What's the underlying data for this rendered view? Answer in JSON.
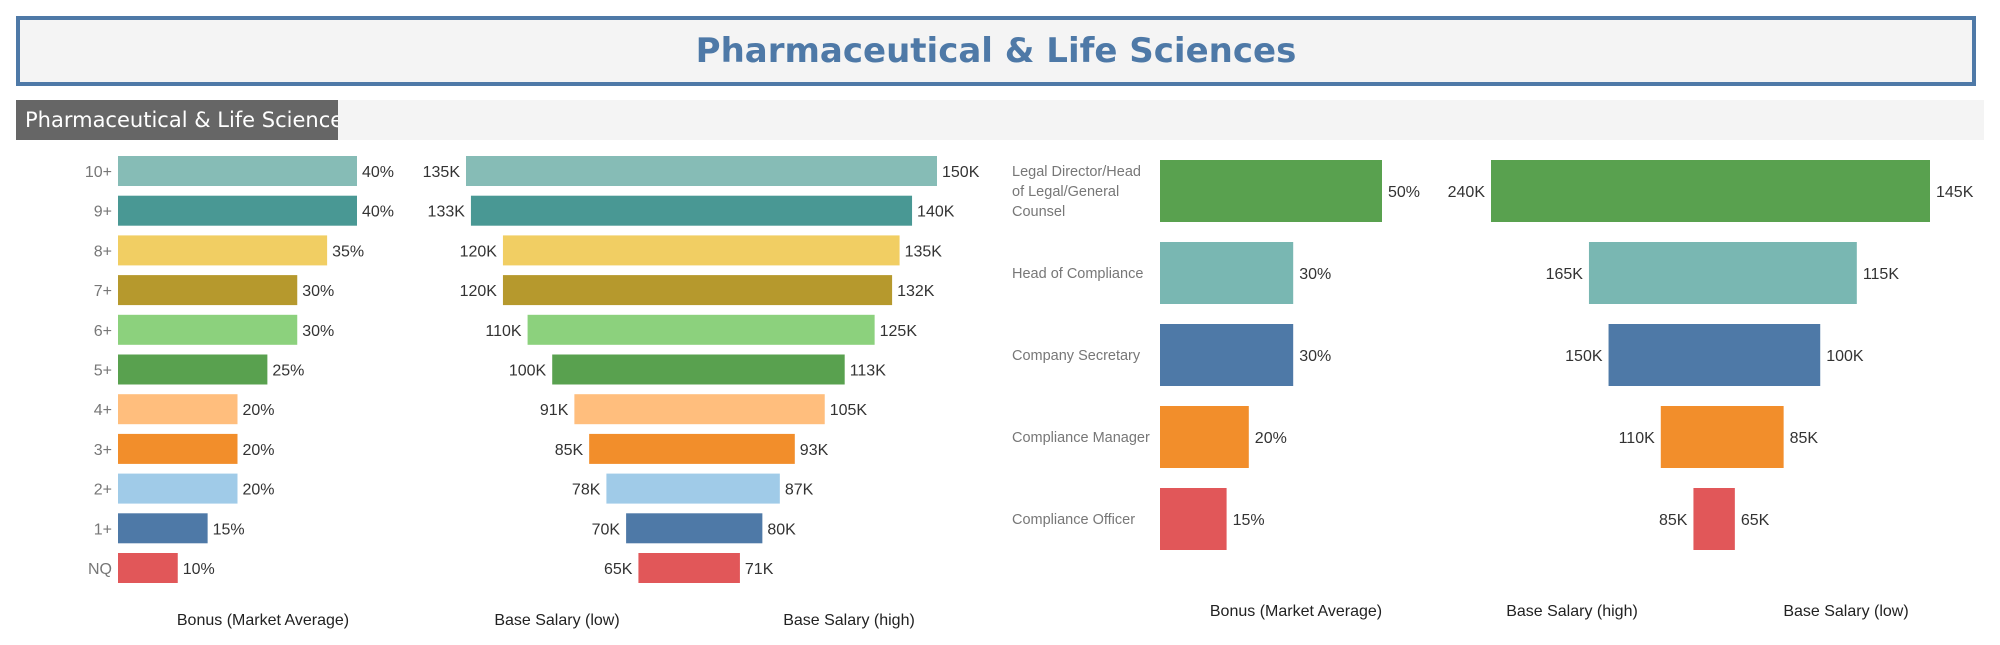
{
  "page_title": "Pharmaceutical & Life Sciences",
  "section_label": "Pharmaceutical & Life Sciences",
  "chart_data": [
    {
      "type": "bar",
      "orientation": "horizontal",
      "xlabel": "Bonus (Market Average)",
      "categories": [
        "10+",
        "9+",
        "8+",
        "7+",
        "6+",
        "5+",
        "4+",
        "3+",
        "2+",
        "1+",
        "NQ"
      ],
      "values": [
        40,
        40,
        35,
        30,
        30,
        25,
        20,
        20,
        20,
        15,
        10
      ],
      "labels": [
        "40%",
        "40%",
        "35%",
        "30%",
        "30%",
        "25%",
        "20%",
        "20%",
        "20%",
        "15%",
        "10%"
      ],
      "colors": [
        "#86bcb6",
        "#499894",
        "#f1ce63",
        "#b6992d",
        "#8cd17d",
        "#59a14f",
        "#ffbe7d",
        "#f28e2b",
        "#a0cbe8",
        "#4e79a7",
        "#e15759"
      ],
      "xlim": [
        0,
        40
      ]
    },
    {
      "type": "bar",
      "orientation": "horizontal",
      "subtype": "butterfly",
      "categories": [
        "10+",
        "9+",
        "8+",
        "7+",
        "6+",
        "5+",
        "4+",
        "3+",
        "2+",
        "1+",
        "NQ"
      ],
      "series": [
        {
          "name": "Base Salary (low)",
          "values": [
            135,
            133,
            120,
            120,
            110,
            100,
            91,
            85,
            78,
            70,
            65
          ],
          "labels": [
            "135K",
            "133K",
            "120K",
            "120K",
            "110K",
            "100K",
            "91K",
            "85K",
            "78K",
            "70K",
            "65K"
          ]
        },
        {
          "name": "Base Salary (high)",
          "values": [
            150,
            140,
            135,
            132,
            125,
            113,
            105,
            93,
            87,
            80,
            71
          ],
          "labels": [
            "150K",
            "140K",
            "135K",
            "132K",
            "125K",
            "113K",
            "105K",
            "93K",
            "87K",
            "80K",
            "71K"
          ]
        }
      ],
      "colors": [
        "#86bcb6",
        "#499894",
        "#f1ce63",
        "#b6992d",
        "#8cd17d",
        "#59a14f",
        "#ffbe7d",
        "#f28e2b",
        "#a0cbe8",
        "#4e79a7",
        "#e15759"
      ],
      "unit": "K"
    },
    {
      "type": "bar",
      "orientation": "horizontal",
      "xlabel": "Bonus (Market Average)",
      "categories": [
        [
          "Legal Director/Head",
          "of Legal/General",
          "Counsel"
        ],
        [
          "Head of Compliance"
        ],
        [
          "Company Secretary"
        ],
        [
          "Compliance Manager"
        ],
        [
          "Compliance Officer"
        ]
      ],
      "values": [
        50,
        30,
        30,
        20,
        15
      ],
      "labels": [
        "50%",
        "30%",
        "30%",
        "20%",
        "15%"
      ],
      "colors": [
        "#59a14f",
        "#79b7b2",
        "#4e79a7",
        "#f28e2b",
        "#e15759"
      ],
      "xlim": [
        0,
        50
      ]
    },
    {
      "type": "bar",
      "orientation": "horizontal",
      "subtype": "butterfly",
      "categories": [
        "Legal Director/Head of Legal/General Counsel",
        "Head of Compliance",
        "Company Secretary",
        "Compliance Manager",
        "Compliance Officer"
      ],
      "series": [
        {
          "name": "Base Salary (high)",
          "values": [
            240,
            165,
            150,
            110,
            85
          ],
          "labels": [
            "240K",
            "165K",
            "150K",
            "110K",
            "85K"
          ]
        },
        {
          "name": "Base Salary (low)",
          "values": [
            145,
            115,
            100,
            85,
            65
          ],
          "labels": [
            "145K",
            "115K",
            "100K",
            "85K",
            "65K"
          ]
        }
      ],
      "colors": [
        "#59a14f",
        "#79b7b2",
        "#4e79a7",
        "#f28e2b",
        "#e15759"
      ],
      "unit": "K"
    }
  ]
}
